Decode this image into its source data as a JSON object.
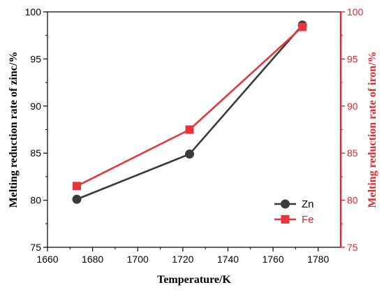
{
  "chart_data": {
    "type": "line",
    "title": "",
    "xlabel": "Temperature/K",
    "ylabel_left": "Melting reduction rate of zinc/%",
    "ylabel_right": "Melting reduction rate of iron/%",
    "xlim": [
      1660,
      1790
    ],
    "ylim_left": [
      75,
      100
    ],
    "ylim_right": [
      75,
      100
    ],
    "x_ticks": [
      1660,
      1680,
      1700,
      1720,
      1740,
      1760,
      1780
    ],
    "y_ticks": [
      75,
      80,
      85,
      90,
      95,
      100
    ],
    "grid": false,
    "legend_position": "lower-right",
    "colors": {
      "left_axis": "#000000",
      "right_axis": "#e8242a"
    },
    "series": [
      {
        "name": "Zn",
        "axis": "left",
        "marker": "circle",
        "color": "#3a3a3a",
        "x": [
          1673,
          1723,
          1773
        ],
        "values": [
          80.1,
          84.9,
          98.6
        ]
      },
      {
        "name": "Fe",
        "axis": "right",
        "marker": "square",
        "color": "#e8353b",
        "x": [
          1673,
          1723,
          1773
        ],
        "values": [
          81.5,
          87.5,
          98.4
        ]
      }
    ]
  }
}
